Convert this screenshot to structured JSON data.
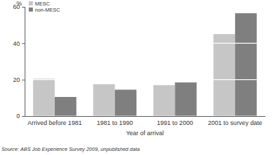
{
  "chart_data": {
    "type": "bar",
    "categories": [
      "Arrived before 1981",
      "1981 to 1990",
      "1991 to 2000",
      "2001 to survey date"
    ],
    "series": [
      {
        "name": "MESC",
        "color": "#c6c6c6",
        "values": [
          20.5,
          17.5,
          17,
          45
        ]
      },
      {
        "name": "non-MESC",
        "color": "#7f7f7f",
        "values": [
          10.5,
          14.5,
          18.5,
          56.5
        ]
      }
    ],
    "y_label": "%",
    "x_label": "Year of arrival",
    "annotations": [
      "Source: ABS Job Experience Survey 2009, unpublished data"
    ],
    "ylim": [
      0,
      60
    ],
    "yticks": [
      0,
      20,
      40,
      60
    ],
    "grid": true,
    "legend": "upper left"
  }
}
